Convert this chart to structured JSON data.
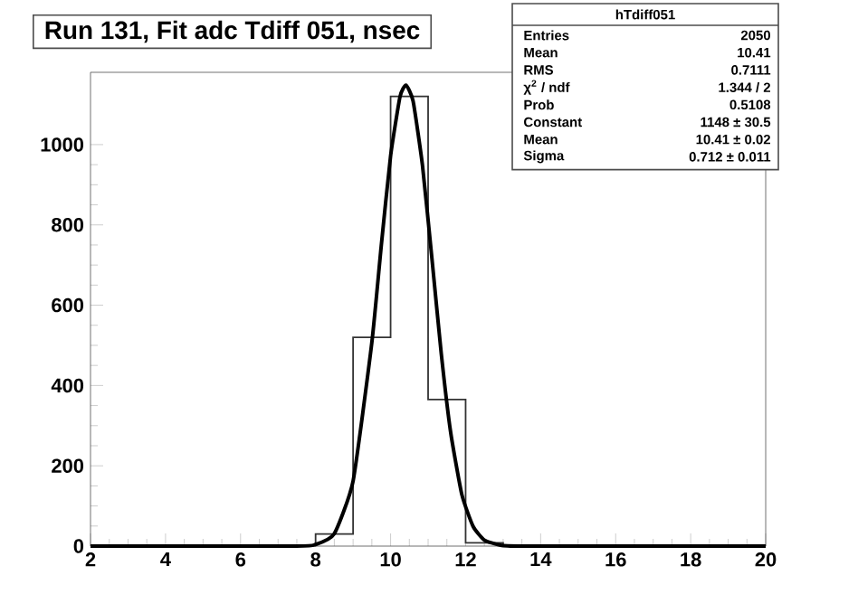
{
  "chart_data": {
    "type": "histogram",
    "title": "Run 131, Fit adc Tdiff 051, nsec",
    "bins": [
      8,
      9,
      10,
      11,
      12,
      13
    ],
    "values": [
      30,
      520,
      1120,
      365,
      8
    ],
    "color": "#333333",
    "series": [
      {
        "type": "line",
        "color": "#000000",
        "x": [
          2,
          7.5,
          8,
          8.5,
          9,
          9.5,
          9.75,
          10,
          10.25,
          10.41,
          10.6,
          10.85,
          11.1,
          11.35,
          11.6,
          11.9,
          12.2,
          12.5,
          12.9,
          13.5,
          20
        ],
        "values": [
          0,
          0,
          4,
          31,
          162,
          507,
          747,
          972,
          1119,
          1148,
          1108,
          948,
          718,
          480,
          284,
          128,
          49,
          15,
          3,
          0,
          0
        ]
      }
    ],
    "xlim": [
      2,
      20
    ],
    "ylim": [
      0,
      1180
    ],
    "xticks": [
      2,
      4,
      6,
      8,
      10,
      12,
      14,
      16,
      18,
      20
    ],
    "yticks": [
      0,
      200,
      400,
      600,
      800,
      1000
    ],
    "grid": false,
    "annotations": [
      "hTdiff051",
      "Entries",
      "2050",
      "Mean",
      "10.41",
      "RMS",
      "0.7111",
      "χ$^{2}$ / ndf",
      "1.344 / 2",
      "Prob",
      "0.5108",
      "Constant",
      "1148 ± 30.5",
      "Mean",
      "10.41 ± 0.02",
      "Sigma",
      "0.712 ± 0.011"
    ]
  }
}
